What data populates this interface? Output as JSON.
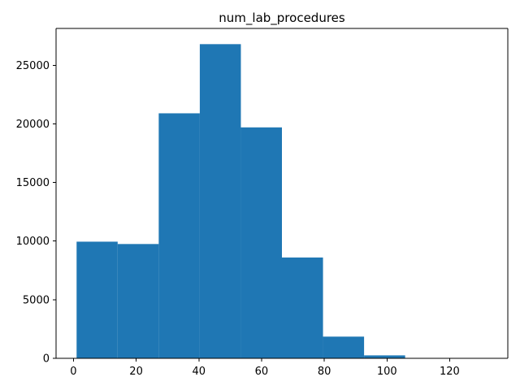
{
  "chart_data": {
    "type": "bar",
    "subtype": "histogram",
    "title": "num_lab_procedures",
    "xlabel": "",
    "ylabel": "",
    "bin_edges": [
      1,
      14.1,
      27.2,
      40.3,
      53.4,
      66.5,
      79.6,
      92.7,
      105.8,
      118.9,
      132
    ],
    "values": [
      9950,
      9750,
      20900,
      26800,
      19700,
      8600,
      1850,
      250,
      20,
      5
    ],
    "xlim": [
      -5.55,
      138.55
    ],
    "ylim": [
      0,
      28140
    ],
    "xticks": [
      0,
      20,
      40,
      60,
      80,
      100,
      120
    ],
    "xtick_labels": [
      "0",
      "20",
      "40",
      "60",
      "80",
      "100",
      "120"
    ],
    "yticks": [
      0,
      5000,
      10000,
      15000,
      20000,
      25000
    ],
    "ytick_labels": [
      "0",
      "5000",
      "10000",
      "15000",
      "20000",
      "25000"
    ],
    "bar_color": "#1f77b4",
    "grid": false,
    "legend": "none"
  }
}
